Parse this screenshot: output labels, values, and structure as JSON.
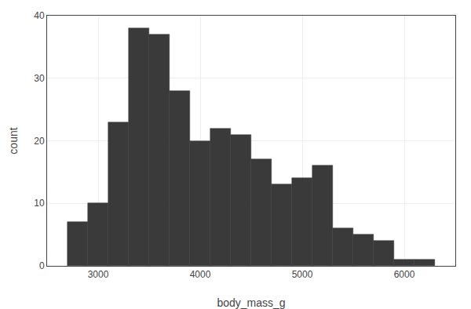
{
  "chart_data": {
    "type": "histogram",
    "bins": [
      2700,
      2900,
      3100,
      3300,
      3500,
      3700,
      3900,
      4100,
      4300,
      4500,
      4700,
      4900,
      5100,
      5300,
      5500,
      5700,
      5900,
      6100,
      6300
    ],
    "values": [
      7,
      10,
      23,
      38,
      37,
      28,
      20,
      22,
      21,
      17,
      13,
      14,
      16,
      6,
      5,
      4,
      1,
      1
    ],
    "color": "#3a3a3a",
    "xlabel": "body_mass_g",
    "ylabel": "count",
    "xlim": [
      2500,
      6500
    ],
    "ylim": [
      0,
      40
    ],
    "xticks": [
      3000,
      4000,
      5000,
      6000
    ],
    "yticks": [
      0,
      10,
      20,
      30,
      40
    ],
    "grid": true
  }
}
